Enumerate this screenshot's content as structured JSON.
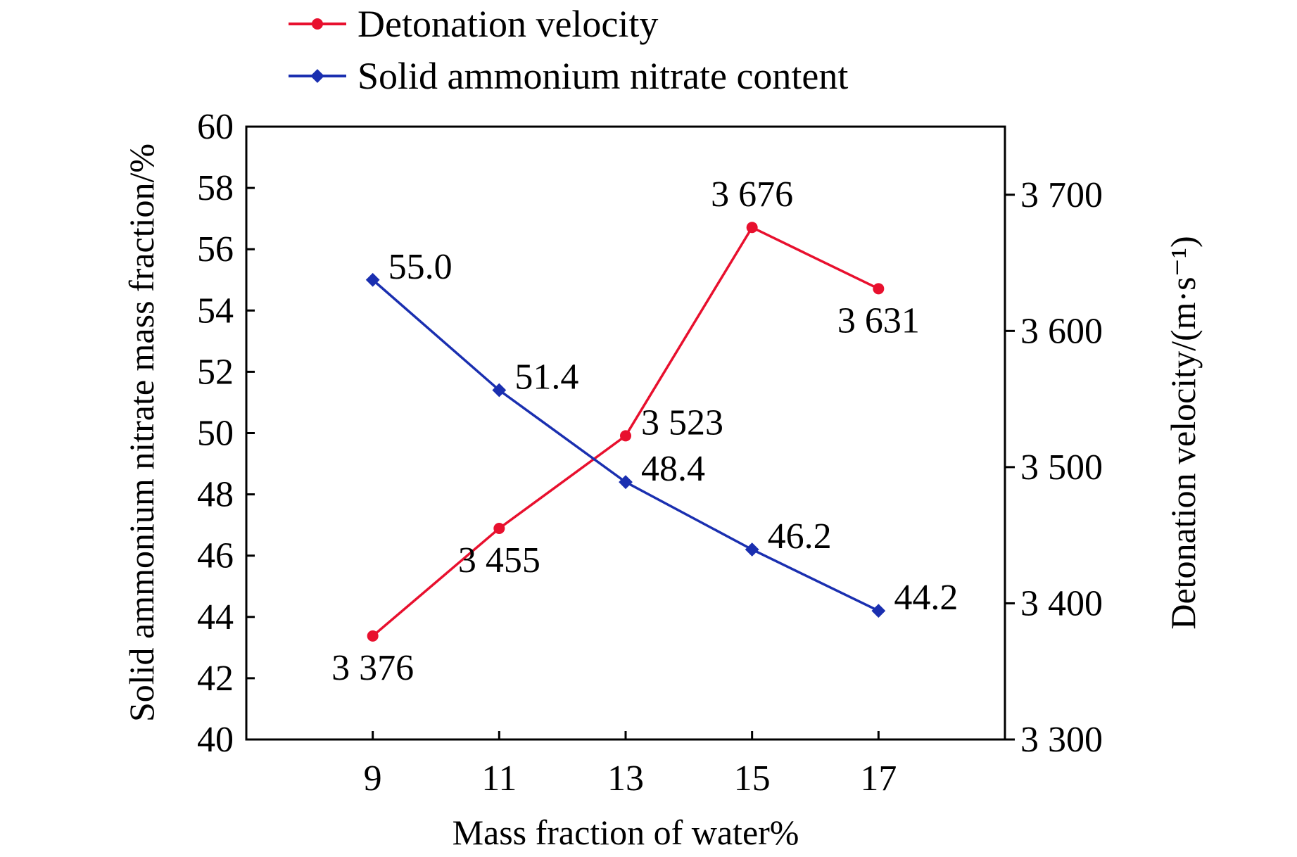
{
  "chart_data": {
    "type": "line",
    "title": "",
    "x": [
      9,
      11,
      13,
      15,
      17
    ],
    "x_tick_labels": [
      "9",
      "11",
      "13",
      "15",
      "17"
    ],
    "xlabel": "Mass fraction of water%",
    "xlim": [
      7,
      19
    ],
    "ylabel_left": "Solid ammonium nitrate mass fraction/%",
    "ylim_left": [
      40,
      60
    ],
    "y_ticks_left": [
      "40",
      "42",
      "44",
      "46",
      "48",
      "50",
      "52",
      "54",
      "56",
      "58",
      "60"
    ],
    "ylabel_right": "Detonation velocity/(m·s⁻¹)",
    "ylim_right": [
      3300,
      3750
    ],
    "y_ticks_right": [
      {
        "value": 3300,
        "label": "3 300"
      },
      {
        "value": 3400,
        "label": "3 400"
      },
      {
        "value": 3500,
        "label": "3 500"
      },
      {
        "value": 3600,
        "label": "3 600"
      },
      {
        "value": 3700,
        "label": "3 700"
      }
    ],
    "grid": false,
    "legend_position": "top",
    "series": [
      {
        "name": "Detonation velocity",
        "axis": "right",
        "color": "#e8102e",
        "marker": "circle",
        "values": [
          3376,
          3455,
          3523,
          3676,
          3631
        ],
        "labels": [
          "3 376",
          "3 455",
          "3 523",
          "3 676",
          "3 631"
        ],
        "label_placement": [
          "below",
          "below",
          "right",
          "above",
          "below"
        ]
      },
      {
        "name": "Solid ammonium nitrate content",
        "axis": "left",
        "color": "#1a2fb0",
        "marker": "diamond",
        "values": [
          55.0,
          51.4,
          48.4,
          46.2,
          44.2
        ],
        "labels": [
          "55.0",
          "51.4",
          "48.4",
          "46.2",
          "44.2"
        ],
        "label_placement": [
          "right",
          "right",
          "right",
          "right",
          "right"
        ]
      }
    ]
  }
}
